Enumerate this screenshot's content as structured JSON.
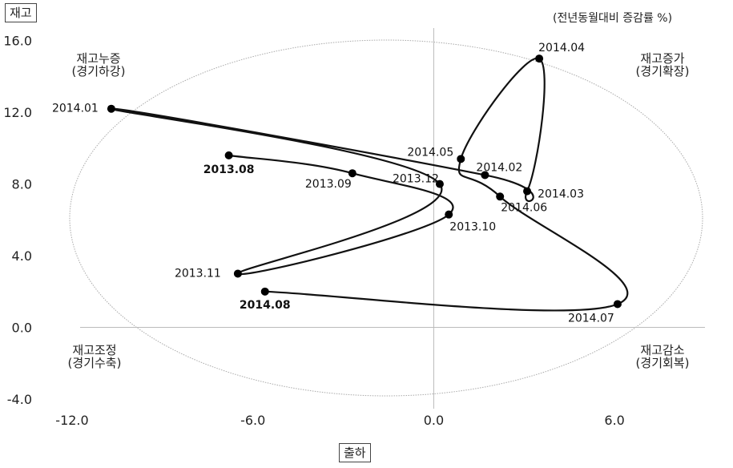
{
  "chart_data": {
    "type": "scatter",
    "title": "",
    "unit_note": "(전년동월대비 증감률 %)",
    "ylabel": "재고",
    "xlabel": "출하",
    "xlim": [
      -12,
      9
    ],
    "ylim": [
      -4,
      18
    ],
    "x_ticks": [
      "-12.0",
      "-6.0",
      "0.0",
      "6.0"
    ],
    "x_tick_values": [
      -12,
      -6,
      0,
      6
    ],
    "y_ticks": [
      "-4.0",
      "0.0",
      "4.0",
      "8.0",
      "12.0",
      "16.0"
    ],
    "y_tick_values": [
      -4,
      0,
      4,
      8,
      12,
      16
    ],
    "line_connected": true,
    "grid": false,
    "points": [
      {
        "label": "2013.08",
        "x": -6.8,
        "y": 9.6,
        "bold": true
      },
      {
        "label": "2013.09",
        "x": -2.7,
        "y": 8.6,
        "bold": false
      },
      {
        "label": "2013.10",
        "x": 0.5,
        "y": 6.3,
        "bold": false
      },
      {
        "label": "2013.11",
        "x": -6.5,
        "y": 3.0,
        "bold": false
      },
      {
        "label": "2013.12",
        "x": 0.2,
        "y": 8.0,
        "bold": false
      },
      {
        "label": "2014.01",
        "x": -10.7,
        "y": 12.2,
        "bold": false
      },
      {
        "label": "2014.02",
        "x": 1.7,
        "y": 8.5,
        "bold": false
      },
      {
        "label": "2014.03",
        "x": 3.1,
        "y": 7.6,
        "bold": false
      },
      {
        "label": "2014.04",
        "x": 3.5,
        "y": 15.0,
        "bold": false
      },
      {
        "label": "2014.05",
        "x": 0.9,
        "y": 9.4,
        "bold": false
      },
      {
        "label": "2014.06",
        "x": 2.2,
        "y": 7.3,
        "bold": false
      },
      {
        "label": "2014.07",
        "x": 6.1,
        "y": 1.3,
        "bold": false
      },
      {
        "label": "2014.08",
        "x": -5.6,
        "y": 2.0,
        "bold": true
      }
    ],
    "quadrants": {
      "top_left": [
        "재고누증",
        "(경기하강)"
      ],
      "top_right": [
        "재고증가",
        "(경기확장)"
      ],
      "bottom_left": [
        "재고조정",
        "(경기수축)"
      ],
      "bottom_right": [
        "재고감소",
        "(경기회복)"
      ]
    },
    "colors": {
      "line": "#111111",
      "point": "#000000",
      "axis": "#bbbbbb",
      "ellipse": "#aaaaaa"
    }
  }
}
